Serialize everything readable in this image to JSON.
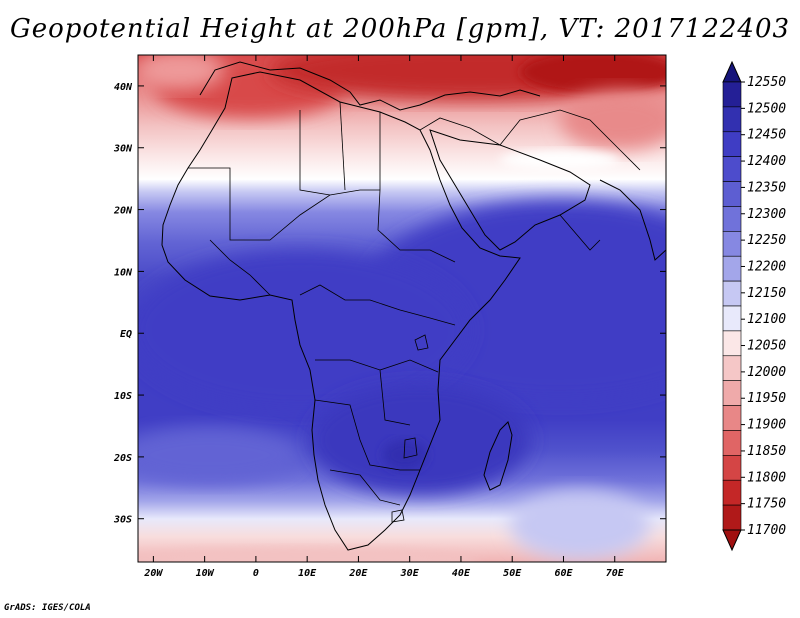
{
  "title": "Geopotential Height at 200hPa [gpm], VT: 2017122403",
  "credit": "GrADS: IGES/COLA",
  "map": {
    "projection": "latlon",
    "lon_range": [
      -23,
      80
    ],
    "lat_range": [
      -37,
      45
    ],
    "lat_ticks": [
      {
        "value": 40,
        "label": "40N"
      },
      {
        "value": 30,
        "label": "30N"
      },
      {
        "value": 20,
        "label": "20N"
      },
      {
        "value": 10,
        "label": "10N"
      },
      {
        "value": 0,
        "label": "EQ"
      },
      {
        "value": -10,
        "label": "10S"
      },
      {
        "value": -20,
        "label": "20S"
      },
      {
        "value": -30,
        "label": "30S"
      }
    ],
    "lon_ticks": [
      {
        "value": -20,
        "label": "20W"
      },
      {
        "value": -10,
        "label": "10W"
      },
      {
        "value": 0,
        "label": "0"
      },
      {
        "value": 10,
        "label": "10E"
      },
      {
        "value": 20,
        "label": "20E"
      },
      {
        "value": 30,
        "label": "30E"
      },
      {
        "value": 40,
        "label": "40E"
      },
      {
        "value": 50,
        "label": "50E"
      },
      {
        "value": 60,
        "label": "60E"
      },
      {
        "value": 70,
        "label": "70E"
      }
    ]
  },
  "colorbar": {
    "labels": [
      "12550",
      "12500",
      "12450",
      "12400",
      "12350",
      "12300",
      "12250",
      "12200",
      "12150",
      "12100",
      "12050",
      "12000",
      "11950",
      "11900",
      "11850",
      "11800",
      "11750",
      "11700"
    ],
    "colors": [
      "#16147a",
      "#241f96",
      "#3230b0",
      "#3f3dc4",
      "#4d4ccc",
      "#5d5ed2",
      "#7072da",
      "#8688e2",
      "#a3a6ea",
      "#c6c8f3",
      "#e8e9fb",
      "#fbe7e7",
      "#f5c7c7",
      "#efaaaa",
      "#e88787",
      "#e06565",
      "#d44545",
      "#c42727",
      "#b01919",
      "#a01010"
    ]
  }
}
